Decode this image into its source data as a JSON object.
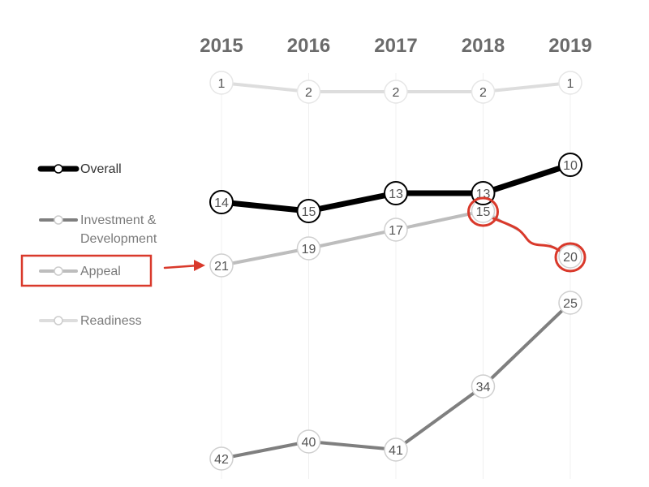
{
  "chart_data": {
    "type": "line",
    "title": "",
    "xlabel": "",
    "ylabel": "",
    "y_reversed": true,
    "grid": false,
    "legend_position": "left",
    "x": [
      "2015",
      "2016",
      "2017",
      "2018",
      "2019"
    ],
    "series": [
      {
        "name": "Readiness",
        "values": [
          1,
          2,
          2,
          2,
          1
        ],
        "color": "#dddddd",
        "style": "thin"
      },
      {
        "name": "Appeal",
        "values": [
          21,
          19,
          17,
          15,
          20
        ],
        "color": "#bdbdbd",
        "style": "medium"
      },
      {
        "name": "Investment & Development",
        "values": [
          42,
          40,
          41,
          34,
          25
        ],
        "color": "#7f7f7f",
        "style": "medium"
      },
      {
        "name": "Overall",
        "values": [
          14,
          15,
          13,
          13,
          10
        ],
        "color": "#000000",
        "style": "thick"
      }
    ],
    "legend": [
      {
        "label_lines": [
          "Overall"
        ],
        "series": "Overall"
      },
      {
        "label_lines": [
          "Investment &",
          "Development"
        ],
        "series": "Investment & Development"
      },
      {
        "label_lines": [
          "Appeal"
        ],
        "series": "Appeal",
        "highlighted": true
      },
      {
        "label_lines": [
          "Readiness"
        ],
        "series": "Readiness"
      }
    ],
    "annotations": [
      {
        "type": "box",
        "target": "legend:Appeal",
        "color": "#d9392b"
      },
      {
        "type": "arrow",
        "from": "legend:Appeal",
        "to": "Appeal:2015",
        "color": "#d9392b"
      },
      {
        "type": "circle",
        "target": "Appeal:2018",
        "color": "#d9392b"
      },
      {
        "type": "circle",
        "target": "Appeal:2019",
        "color": "#d9392b"
      },
      {
        "type": "hand-drawn-line",
        "from": "Appeal:2018",
        "to": "Appeal:2019",
        "color": "#d9392b"
      }
    ]
  }
}
